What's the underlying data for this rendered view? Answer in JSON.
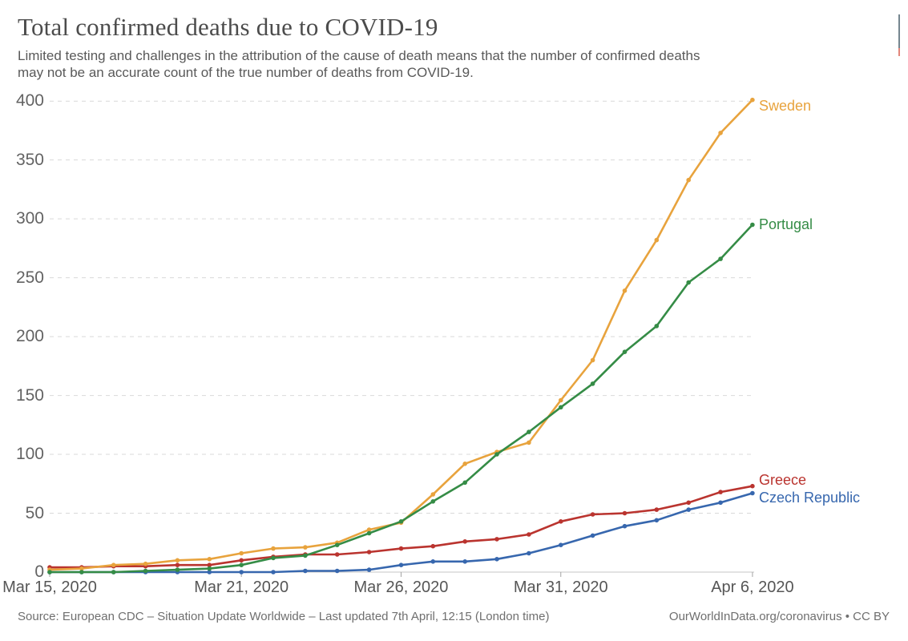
{
  "header": {
    "title": "Total confirmed deaths due to COVID-19",
    "subtitle_line1": "Limited testing and challenges in the attribution of the cause of death means that the number of confirmed deaths",
    "subtitle_line2": "may not be an accurate count of the true number of deaths from COVID-19."
  },
  "chart_data": {
    "type": "line",
    "title": "Total confirmed deaths due to COVID-19",
    "xlabel": "",
    "ylabel": "",
    "ylim": [
      0,
      400
    ],
    "grid": "horizontal-dashed",
    "legend_position": "end-of-line-labels",
    "x_dates": [
      "Mar 15, 2020",
      "Mar 16, 2020",
      "Mar 17, 2020",
      "Mar 18, 2020",
      "Mar 19, 2020",
      "Mar 20, 2020",
      "Mar 21, 2020",
      "Mar 22, 2020",
      "Mar 23, 2020",
      "Mar 24, 2020",
      "Mar 25, 2020",
      "Mar 26, 2020",
      "Mar 27, 2020",
      "Mar 28, 2020",
      "Mar 29, 2020",
      "Mar 30, 2020",
      "Mar 31, 2020",
      "Apr 1, 2020",
      "Apr 2, 2020",
      "Apr 3, 2020",
      "Apr 4, 2020",
      "Apr 5, 2020",
      "Apr 6, 2020"
    ],
    "y_ticks": [
      0,
      50,
      100,
      150,
      200,
      250,
      300,
      350,
      400
    ],
    "x_ticks": [
      {
        "label": "Mar 15, 2020",
        "index": 0
      },
      {
        "label": "Mar 21, 2020",
        "index": 6
      },
      {
        "label": "Mar 26, 2020",
        "index": 11
      },
      {
        "label": "Mar 31, 2020",
        "index": 16
      },
      {
        "label": "Apr 6, 2020",
        "index": 22
      }
    ],
    "series": [
      {
        "name": "Sweden",
        "color": "#E8A33D",
        "values": [
          2,
          3,
          6,
          7,
          10,
          11,
          16,
          20,
          21,
          25,
          36,
          42,
          66,
          92,
          102,
          110,
          146,
          180,
          239,
          282,
          333,
          373,
          401
        ]
      },
      {
        "name": "Portugal",
        "color": "#358C46",
        "values": [
          0,
          0,
          0,
          1,
          2,
          3,
          6,
          12,
          14,
          23,
          33,
          43,
          60,
          76,
          100,
          119,
          140,
          160,
          187,
          209,
          246,
          266,
          295
        ]
      },
      {
        "name": "Greece",
        "color": "#BA342F",
        "values": [
          4,
          4,
          5,
          5,
          6,
          6,
          10,
          13,
          15,
          15,
          17,
          20,
          22,
          26,
          28,
          32,
          43,
          49,
          50,
          53,
          59,
          68,
          73
        ]
      },
      {
        "name": "Czech Republic",
        "color": "#3767AE",
        "values": [
          0,
          0,
          0,
          0,
          0,
          0,
          0,
          0,
          1,
          1,
          2,
          6,
          9,
          9,
          11,
          16,
          23,
          31,
          39,
          44,
          53,
          59,
          67
        ]
      }
    ]
  },
  "footer": {
    "source": "Source: European CDC – Situation Update Worldwide – Last updated 7th April, 12:15 (London time)",
    "link": "OurWorldInData.org/coronavirus • CC BY"
  }
}
